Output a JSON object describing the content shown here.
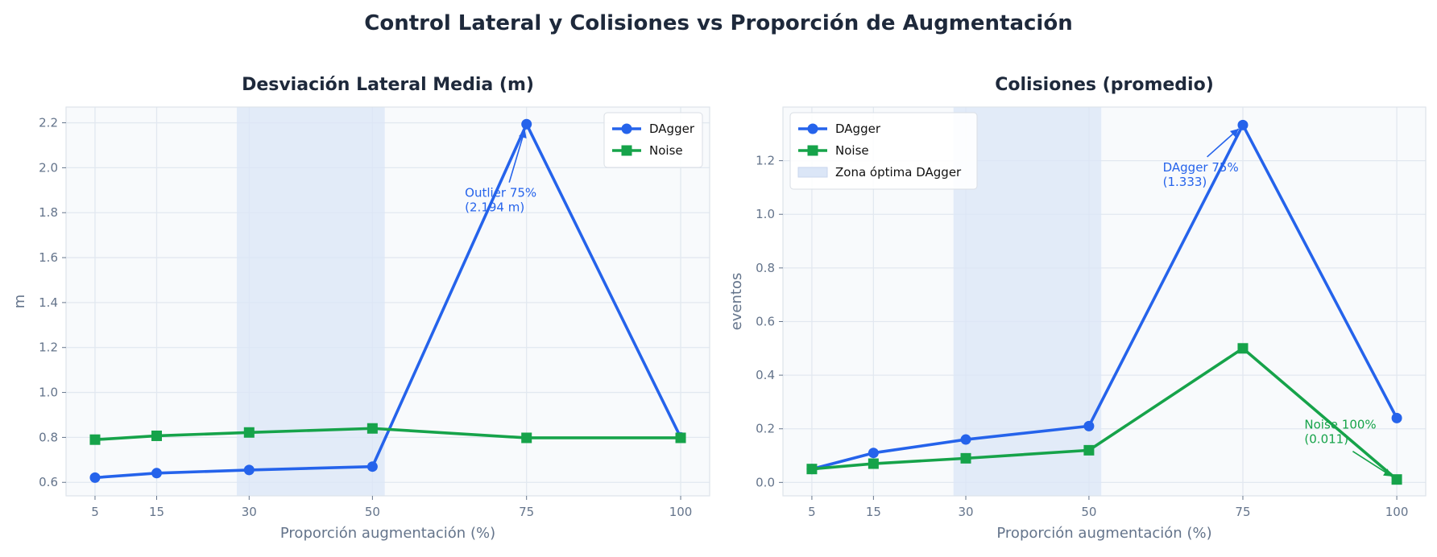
{
  "figure": {
    "title": "Control Lateral y Colisiones vs Proporción de Augmentación"
  },
  "colors": {
    "dagger": "#2563eb",
    "noise": "#16a34a",
    "optimal_zone": "#dbe6f7",
    "plot_bg": "#f8fafc",
    "grid": "#e2e8f0"
  },
  "chart_data": [
    {
      "type": "line",
      "title": "Desviación Lateral Media (m)",
      "xlabel": "Proporción augmentación (%)",
      "ylabel": "m",
      "x": [
        5,
        15,
        30,
        50,
        75,
        100
      ],
      "xlim": [
        0.3,
        104.7
      ],
      "ylim": [
        0.54,
        2.27
      ],
      "yticks": [
        0.6,
        0.8,
        1.0,
        1.2,
        1.4,
        1.6,
        1.8,
        2.0,
        2.2
      ],
      "ytick_labels": [
        "0.6",
        "0.8",
        "1.0",
        "1.2",
        "1.4",
        "1.6",
        "1.8",
        "2.0",
        "2.2"
      ],
      "xtick_labels": [
        "5",
        "15",
        "30",
        "50",
        "75",
        "100"
      ],
      "grid": true,
      "legend": "upper right",
      "shaded_region": [
        28,
        52
      ],
      "series": [
        {
          "name": "DAgger",
          "marker": "circle",
          "values": [
            0.621,
            0.641,
            0.655,
            0.67,
            2.194,
            0.8
          ]
        },
        {
          "name": "Noise",
          "marker": "square",
          "values": [
            0.79,
            0.807,
            0.822,
            0.84,
            0.798,
            0.798
          ]
        }
      ],
      "annotations": [
        {
          "series": 0,
          "x": 75,
          "y": 2.194,
          "text_x": 65,
          "text_y": 1.87,
          "lines": [
            "Outlier 75%",
            "(2.194 m)"
          ]
        }
      ]
    },
    {
      "type": "line",
      "title": "Colisiones (promedio)",
      "xlabel": "Proporción augmentación (%)",
      "ylabel": "eventos",
      "x": [
        5,
        15,
        30,
        50,
        75,
        100
      ],
      "xlim": [
        0.3,
        104.7
      ],
      "ylim": [
        -0.05,
        1.4
      ],
      "yticks": [
        0.0,
        0.2,
        0.4,
        0.6,
        0.8,
        1.0,
        1.2
      ],
      "ytick_labels": [
        "0.0",
        "0.2",
        "0.4",
        "0.6",
        "0.8",
        "1.0",
        "1.2"
      ],
      "xtick_labels": [
        "5",
        "15",
        "30",
        "50",
        "75",
        "100"
      ],
      "grid": true,
      "legend": "upper left",
      "shaded_region": [
        28,
        52
      ],
      "shaded_label": "Zona óptima DAgger",
      "series": [
        {
          "name": "DAgger",
          "marker": "circle",
          "values": [
            0.05,
            0.11,
            0.16,
            0.21,
            1.333,
            0.24
          ]
        },
        {
          "name": "Noise",
          "marker": "square",
          "values": [
            0.05,
            0.07,
            0.09,
            0.12,
            0.5,
            0.011
          ]
        }
      ],
      "annotations": [
        {
          "series": 0,
          "x": 75,
          "y": 1.333,
          "text_x": 62,
          "text_y": 1.16,
          "lines": [
            "DAgger 75%",
            "(1.333)"
          ]
        },
        {
          "series": 1,
          "x": 100,
          "y": 0.011,
          "text_x": 85,
          "text_y": 0.2,
          "lines": [
            "Noise 100%",
            "(0.011)"
          ]
        }
      ]
    }
  ]
}
